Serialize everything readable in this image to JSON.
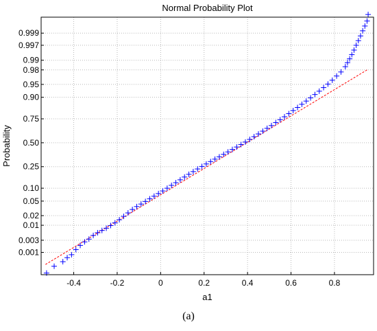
{
  "chart_data": {
    "type": "scatter",
    "title": "Normal Probability Plot",
    "xlabel": "a1",
    "ylabel": "Probability",
    "xlim": [
      -0.55,
      0.98
    ],
    "x_ticks": [
      -0.4,
      -0.2,
      0,
      0.2,
      0.4,
      0.6,
      0.8
    ],
    "x_tick_labels": [
      "-0.4",
      "-0.2",
      "0",
      "0.2",
      "0.4",
      "0.6",
      "0.8"
    ],
    "y_scale": "normal-probability",
    "y_ticks": [
      0.001,
      0.003,
      0.01,
      0.02,
      0.05,
      0.1,
      0.25,
      0.5,
      0.75,
      0.9,
      0.95,
      0.98,
      0.99,
      0.997,
      0.999
    ],
    "y_tick_labels": [
      "0.001",
      "0.003",
      "0.01",
      "0.02",
      "0.05",
      "0.10",
      "0.25",
      "0.50",
      "0.75",
      "0.90",
      "0.95",
      "0.98",
      "0.99",
      "0.997",
      "0.999"
    ],
    "grid": true,
    "marker": "+",
    "marker_color": "#0000ff",
    "reference_line_color": "#ff0000",
    "reference_line": [
      [
        -0.53,
        0.0003
      ],
      [
        0.95,
        0.98
      ]
    ],
    "series": [
      {
        "points": [
          [
            -0.525,
            0.00012
          ],
          [
            -0.49,
            0.00025
          ],
          [
            -0.45,
            0.0004
          ],
          [
            -0.43,
            0.0006
          ],
          [
            -0.41,
            0.0008
          ],
          [
            -0.39,
            0.0013
          ],
          [
            -0.37,
            0.0019
          ],
          [
            -0.35,
            0.0026
          ],
          [
            -0.33,
            0.0033
          ],
          [
            -0.31,
            0.0045
          ],
          [
            -0.29,
            0.0056
          ],
          [
            -0.27,
            0.0067
          ],
          [
            -0.25,
            0.008
          ],
          [
            -0.23,
            0.0098
          ],
          [
            -0.21,
            0.012
          ],
          [
            -0.19,
            0.015
          ],
          [
            -0.17,
            0.019
          ],
          [
            -0.15,
            0.024
          ],
          [
            -0.13,
            0.03
          ],
          [
            -0.11,
            0.036
          ],
          [
            -0.09,
            0.042
          ],
          [
            -0.07,
            0.049
          ],
          [
            -0.05,
            0.057
          ],
          [
            -0.03,
            0.066
          ],
          [
            -0.01,
            0.076
          ],
          [
            0.01,
            0.087
          ],
          [
            0.03,
            0.1
          ],
          [
            0.05,
            0.115
          ],
          [
            0.07,
            0.13
          ],
          [
            0.09,
            0.148
          ],
          [
            0.11,
            0.167
          ],
          [
            0.13,
            0.187
          ],
          [
            0.15,
            0.208
          ],
          [
            0.17,
            0.23
          ],
          [
            0.19,
            0.252
          ],
          [
            0.21,
            0.275
          ],
          [
            0.23,
            0.298
          ],
          [
            0.25,
            0.322
          ],
          [
            0.27,
            0.346
          ],
          [
            0.29,
            0.372
          ],
          [
            0.31,
            0.398
          ],
          [
            0.33,
            0.425
          ],
          [
            0.35,
            0.452
          ],
          [
            0.37,
            0.48
          ],
          [
            0.39,
            0.508
          ],
          [
            0.41,
            0.538
          ],
          [
            0.43,
            0.568
          ],
          [
            0.45,
            0.598
          ],
          [
            0.47,
            0.628
          ],
          [
            0.49,
            0.658
          ],
          [
            0.51,
            0.686
          ],
          [
            0.53,
            0.715
          ],
          [
            0.55,
            0.742
          ],
          [
            0.57,
            0.768
          ],
          [
            0.59,
            0.794
          ],
          [
            0.61,
            0.818
          ],
          [
            0.63,
            0.84
          ],
          [
            0.65,
            0.861
          ],
          [
            0.67,
            0.88
          ],
          [
            0.69,
            0.897
          ],
          [
            0.71,
            0.913
          ],
          [
            0.73,
            0.927
          ],
          [
            0.75,
            0.94
          ],
          [
            0.77,
            0.951
          ],
          [
            0.79,
            0.961
          ],
          [
            0.81,
            0.97
          ],
          [
            0.83,
            0.977
          ],
          [
            0.85,
            0.984
          ],
          [
            0.86,
            0.988
          ],
          [
            0.87,
            0.991
          ],
          [
            0.88,
            0.9935
          ],
          [
            0.89,
            0.9955
          ],
          [
            0.9,
            0.997
          ],
          [
            0.91,
            0.998
          ],
          [
            0.92,
            0.9987
          ],
          [
            0.93,
            0.9992
          ],
          [
            0.94,
            0.9995
          ],
          [
            0.95,
            0.9997
          ],
          [
            0.955,
            0.99985
          ]
        ]
      }
    ]
  },
  "caption": "(a)"
}
